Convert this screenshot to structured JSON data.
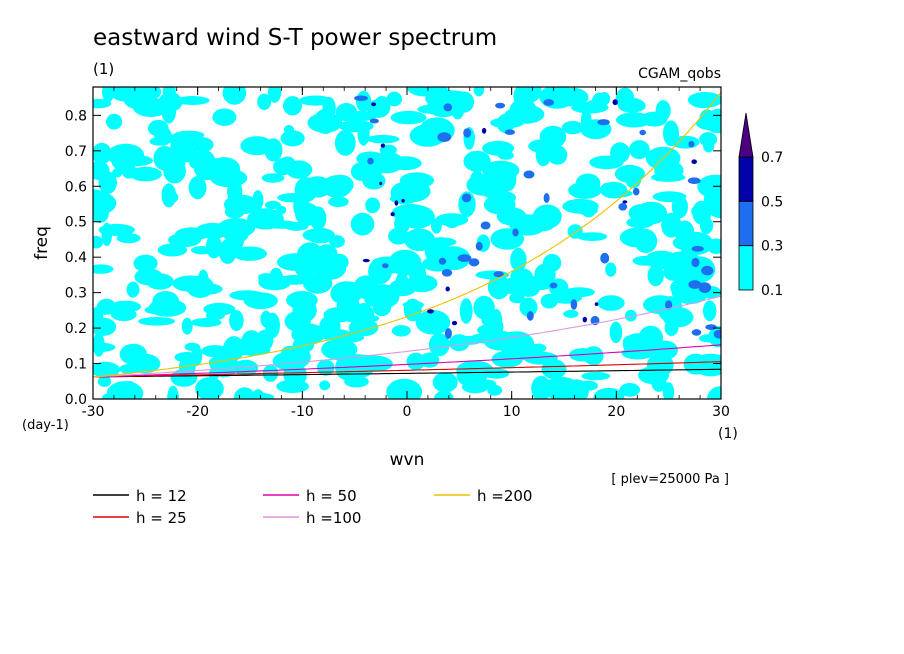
{
  "chart_data": {
    "type": "heatmap",
    "title": "eastward wind S-T power spectrum",
    "subtitle": "(1)",
    "dataset_label": "CGAM_qobs",
    "xlabel": "wvn",
    "x_unit": "(1)",
    "ylabel": "freq",
    "y_unit": "(day-1)",
    "xlim": [
      -30,
      30
    ],
    "ylim": [
      0,
      0.88
    ],
    "x_ticks": [
      -30,
      -20,
      -10,
      0,
      10,
      20,
      30
    ],
    "x_tick_labels": [
      "-30",
      "-20",
      "-10",
      "0",
      "10",
      "20",
      "30"
    ],
    "y_ticks": [
      0,
      0.1,
      0.2,
      0.3,
      0.4,
      0.5,
      0.6,
      0.7,
      0.8
    ],
    "y_tick_labels": [
      "0.0",
      "0.1",
      "0.2",
      "0.3",
      "0.4",
      "0.5",
      "0.6",
      "0.7",
      "0.8"
    ],
    "note": "[ plev=25000 Pa ]",
    "colorbar": {
      "levels": [
        0.1,
        0.3,
        0.5,
        0.7
      ],
      "level_labels": [
        "0.1",
        "0.3",
        "0.5",
        "0.7"
      ],
      "colors": [
        "#00ffff",
        "#1e6ff0",
        "#0000aa",
        "#4b0082"
      ],
      "extend": "max"
    },
    "contour_field_note": "noisy field: cyan (0.1-0.3) patches scattered everywhere, a few blue/dark-blue spots concentrated right of wvn=0 above freq 0.2",
    "series": [
      {
        "name": "h = 12",
        "color": "#000000",
        "equivalent_depth": 12
      },
      {
        "name": "h = 25",
        "color": "#e00000",
        "equivalent_depth": 25
      },
      {
        "name": "h = 50",
        "color": "#e000b0",
        "equivalent_depth": 50
      },
      {
        "name": "h =100",
        "color": "#dd99dd",
        "equivalent_depth": 100
      },
      {
        "name": "h =200",
        "color": "#f0c000",
        "equivalent_depth": 200
      }
    ]
  }
}
